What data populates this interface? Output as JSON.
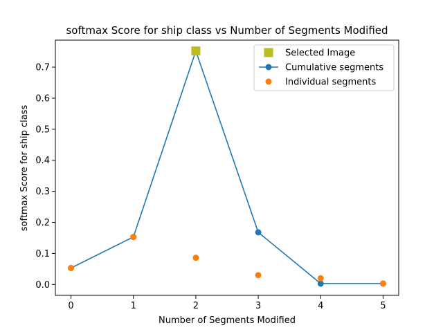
{
  "chart_data": {
    "type": "line",
    "title": "softmax Score for ship class vs Number of Segments Modified",
    "xlabel": "Number of Segments Modified",
    "ylabel": "softmax Score for ship class",
    "xlim": [
      -0.25,
      5.25
    ],
    "ylim": [
      -0.035,
      0.787
    ],
    "x_ticks": [
      0,
      1,
      2,
      3,
      4,
      5
    ],
    "y_ticks": [
      0.0,
      0.1,
      0.2,
      0.3,
      0.4,
      0.5,
      0.6,
      0.7
    ],
    "grid": false,
    "legend_position": "top-right",
    "series": [
      {
        "name": "Selected Image",
        "style": "square-marker",
        "color": "#bcbd22",
        "x": [
          2
        ],
        "y": [
          0.752
        ]
      },
      {
        "name": "Cumulative segments",
        "style": "line-with-markers",
        "color": "#1f77b4",
        "x": [
          0,
          1,
          2,
          3,
          4,
          5
        ],
        "y": [
          0.053,
          0.153,
          0.752,
          0.168,
          0.003,
          0.003
        ]
      },
      {
        "name": "Individual segments",
        "style": "markers",
        "color": "#ff7f0e",
        "x": [
          0,
          1,
          2,
          3,
          4,
          5
        ],
        "y": [
          0.053,
          0.153,
          0.086,
          0.03,
          0.02,
          0.003
        ]
      }
    ]
  }
}
